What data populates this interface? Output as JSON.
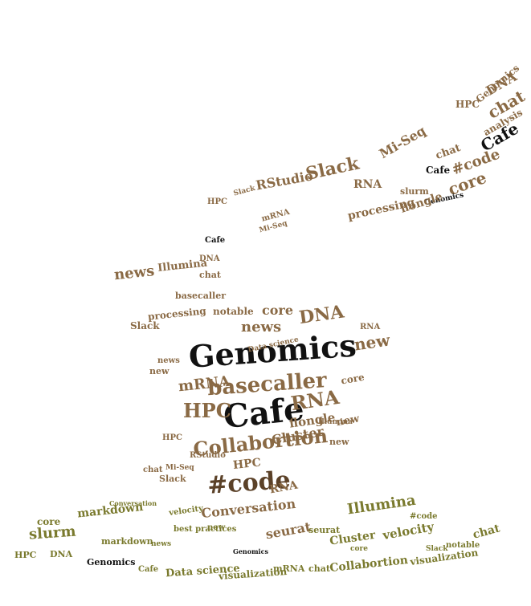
{
  "colors": {
    "background": "#ffffff",
    "brown": "#8a6a45",
    "dark_brown": "#5b4128",
    "olive": "#7a7a2e",
    "black": "#111111"
  },
  "words": {
    "genomics": "Genomics",
    "cafe": "Cafe",
    "code": "#code",
    "basecaller": "basecaller",
    "collabortion": "Collabortion",
    "hpc": "HPC",
    "rna": "RNA",
    "mrna": "mRNA",
    "dna": "DNA",
    "news": "news",
    "new": "new",
    "conversation": "Conversation",
    "cluster": "Cluster",
    "flongle": "flongle",
    "core": "core",
    "slack": "Slack",
    "rstudio": "RStudio",
    "miseq": "Mi-Seq",
    "chat": "chat",
    "analysis": "analysis",
    "illumina": "Illumina",
    "seurat": "seurat",
    "markdown": "markdown",
    "slurm": "slurm",
    "velocity": "velocity",
    "visualization": "visualization",
    "data_science": "Data science",
    "processing": "processing",
    "notable": "notable",
    "best_practices": "best practices",
    "google": "Google"
  }
}
